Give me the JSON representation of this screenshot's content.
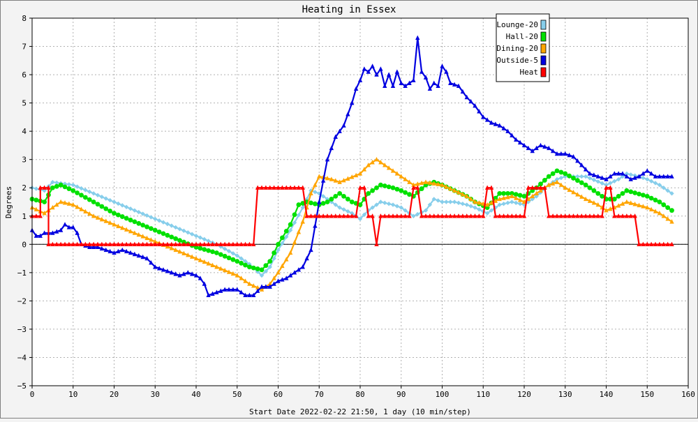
{
  "chart_data": {
    "type": "line",
    "title": "Heating in Essex",
    "xlabel": "Start Date 2022-02-22 21:50, 1 day (10 min/step)",
    "ylabel": "Degrees",
    "xlim": [
      0,
      160
    ],
    "ylim": [
      -5,
      8
    ],
    "xticks": [
      0,
      10,
      20,
      30,
      40,
      50,
      60,
      70,
      80,
      90,
      100,
      110,
      120,
      130,
      140,
      150,
      160
    ],
    "yticks": [
      -5,
      -4,
      -3,
      -2,
      -1,
      0,
      1,
      2,
      3,
      4,
      5,
      6,
      7,
      8
    ],
    "grid": true,
    "legend_position": "top-right",
    "series": [
      {
        "name": "Lounge-20",
        "color": "#87ceeb",
        "marker": "diamond",
        "points": [
          [
            0,
            2.0
          ],
          [
            3,
            1.9
          ],
          [
            5,
            2.2
          ],
          [
            10,
            2.1
          ],
          [
            15,
            1.8
          ],
          [
            20,
            1.5
          ],
          [
            25,
            1.2
          ],
          [
            30,
            0.9
          ],
          [
            35,
            0.6
          ],
          [
            40,
            0.3
          ],
          [
            45,
            0.0
          ],
          [
            50,
            -0.4
          ],
          [
            53,
            -0.7
          ],
          [
            56,
            -1.1
          ],
          [
            58,
            -0.8
          ],
          [
            60,
            -0.2
          ],
          [
            63,
            0.5
          ],
          [
            66,
            1.3
          ],
          [
            68,
            1.9
          ],
          [
            70,
            1.8
          ],
          [
            72,
            1.6
          ],
          [
            75,
            1.3
          ],
          [
            78,
            1.1
          ],
          [
            80,
            0.9
          ],
          [
            82,
            1.2
          ],
          [
            85,
            1.5
          ],
          [
            88,
            1.4
          ],
          [
            90,
            1.3
          ],
          [
            93,
            1.0
          ],
          [
            96,
            1.2
          ],
          [
            98,
            1.6
          ],
          [
            100,
            1.5
          ],
          [
            103,
            1.5
          ],
          [
            106,
            1.4
          ],
          [
            108,
            1.3
          ],
          [
            111,
            1.1
          ],
          [
            114,
            1.4
          ],
          [
            117,
            1.5
          ],
          [
            120,
            1.4
          ],
          [
            123,
            1.7
          ],
          [
            126,
            2.1
          ],
          [
            128,
            2.3
          ],
          [
            130,
            2.4
          ],
          [
            135,
            2.4
          ],
          [
            140,
            2.1
          ],
          [
            143,
            2.3
          ],
          [
            145,
            2.5
          ],
          [
            148,
            2.4
          ],
          [
            150,
            2.3
          ],
          [
            153,
            2.1
          ],
          [
            156,
            1.8
          ]
        ]
      },
      {
        "name": "Hall-20",
        "color": "#00e000",
        "marker": "circle",
        "points": [
          [
            0,
            1.6
          ],
          [
            3,
            1.5
          ],
          [
            5,
            2.0
          ],
          [
            7,
            2.1
          ],
          [
            10,
            1.9
          ],
          [
            15,
            1.5
          ],
          [
            20,
            1.1
          ],
          [
            25,
            0.8
          ],
          [
            30,
            0.5
          ],
          [
            35,
            0.2
          ],
          [
            40,
            -0.1
          ],
          [
            45,
            -0.3
          ],
          [
            50,
            -0.6
          ],
          [
            53,
            -0.8
          ],
          [
            56,
            -0.9
          ],
          [
            58,
            -0.6
          ],
          [
            60,
            0.0
          ],
          [
            63,
            0.7
          ],
          [
            65,
            1.4
          ],
          [
            67,
            1.5
          ],
          [
            70,
            1.4
          ],
          [
            72,
            1.5
          ],
          [
            75,
            1.8
          ],
          [
            78,
            1.5
          ],
          [
            80,
            1.4
          ],
          [
            82,
            1.8
          ],
          [
            85,
            2.1
          ],
          [
            88,
            2.0
          ],
          [
            90,
            1.9
          ],
          [
            93,
            1.7
          ],
          [
            96,
            2.1
          ],
          [
            98,
            2.2
          ],
          [
            100,
            2.1
          ],
          [
            103,
            1.9
          ],
          [
            106,
            1.7
          ],
          [
            108,
            1.5
          ],
          [
            111,
            1.3
          ],
          [
            114,
            1.8
          ],
          [
            117,
            1.8
          ],
          [
            120,
            1.7
          ],
          [
            123,
            2.0
          ],
          [
            126,
            2.4
          ],
          [
            128,
            2.6
          ],
          [
            130,
            2.5
          ],
          [
            135,
            2.1
          ],
          [
            138,
            1.8
          ],
          [
            140,
            1.6
          ],
          [
            142,
            1.6
          ],
          [
            145,
            1.9
          ],
          [
            150,
            1.7
          ],
          [
            153,
            1.5
          ],
          [
            156,
            1.2
          ]
        ]
      },
      {
        "name": "Dining-20",
        "color": "#ffa500",
        "marker": "triangle",
        "points": [
          [
            0,
            1.3
          ],
          [
            3,
            1.1
          ],
          [
            5,
            1.3
          ],
          [
            7,
            1.5
          ],
          [
            10,
            1.4
          ],
          [
            15,
            1.0
          ],
          [
            20,
            0.7
          ],
          [
            25,
            0.4
          ],
          [
            30,
            0.1
          ],
          [
            35,
            -0.2
          ],
          [
            40,
            -0.5
          ],
          [
            45,
            -0.8
          ],
          [
            50,
            -1.1
          ],
          [
            53,
            -1.4
          ],
          [
            56,
            -1.6
          ],
          [
            58,
            -1.4
          ],
          [
            60,
            -1.0
          ],
          [
            63,
            -0.3
          ],
          [
            66,
            0.8
          ],
          [
            68,
            1.8
          ],
          [
            70,
            2.4
          ],
          [
            73,
            2.3
          ],
          [
            75,
            2.2
          ],
          [
            80,
            2.5
          ],
          [
            82,
            2.8
          ],
          [
            84,
            3.0
          ],
          [
            86,
            2.8
          ],
          [
            90,
            2.4
          ],
          [
            93,
            2.1
          ],
          [
            96,
            2.2
          ],
          [
            100,
            2.1
          ],
          [
            103,
            1.9
          ],
          [
            106,
            1.7
          ],
          [
            108,
            1.5
          ],
          [
            111,
            1.4
          ],
          [
            114,
            1.6
          ],
          [
            117,
            1.7
          ],
          [
            120,
            1.5
          ],
          [
            123,
            1.8
          ],
          [
            126,
            2.1
          ],
          [
            128,
            2.2
          ],
          [
            130,
            2.0
          ],
          [
            135,
            1.6
          ],
          [
            138,
            1.4
          ],
          [
            140,
            1.2
          ],
          [
            142,
            1.3
          ],
          [
            145,
            1.5
          ],
          [
            150,
            1.3
          ],
          [
            153,
            1.1
          ],
          [
            156,
            0.8
          ]
        ]
      },
      {
        "name": "Outside-5",
        "color": "#0000e0",
        "marker": "triangle",
        "points": [
          [
            0,
            0.5
          ],
          [
            1,
            0.3
          ],
          [
            2,
            0.3
          ],
          [
            3,
            0.4
          ],
          [
            5,
            0.4
          ],
          [
            7,
            0.5
          ],
          [
            8,
            0.7
          ],
          [
            9,
            0.6
          ],
          [
            10,
            0.6
          ],
          [
            11,
            0.4
          ],
          [
            12,
            0.0
          ],
          [
            14,
            -0.1
          ],
          [
            16,
            -0.1
          ],
          [
            18,
            -0.2
          ],
          [
            20,
            -0.3
          ],
          [
            22,
            -0.2
          ],
          [
            24,
            -0.3
          ],
          [
            26,
            -0.4
          ],
          [
            28,
            -0.5
          ],
          [
            30,
            -0.8
          ],
          [
            32,
            -0.9
          ],
          [
            34,
            -1.0
          ],
          [
            36,
            -1.1
          ],
          [
            38,
            -1.0
          ],
          [
            40,
            -1.1
          ],
          [
            41,
            -1.2
          ],
          [
            42,
            -1.4
          ],
          [
            43,
            -1.8
          ],
          [
            45,
            -1.7
          ],
          [
            47,
            -1.6
          ],
          [
            49,
            -1.6
          ],
          [
            50,
            -1.6
          ],
          [
            52,
            -1.8
          ],
          [
            54,
            -1.8
          ],
          [
            56,
            -1.5
          ],
          [
            58,
            -1.5
          ],
          [
            60,
            -1.3
          ],
          [
            62,
            -1.2
          ],
          [
            64,
            -1.0
          ],
          [
            66,
            -0.8
          ],
          [
            68,
            -0.2
          ],
          [
            70,
            1.5
          ],
          [
            72,
            3.0
          ],
          [
            74,
            3.8
          ],
          [
            76,
            4.2
          ],
          [
            78,
            5.0
          ],
          [
            79,
            5.5
          ],
          [
            80,
            5.8
          ],
          [
            81,
            6.2
          ],
          [
            82,
            6.1
          ],
          [
            83,
            6.3
          ],
          [
            84,
            6.0
          ],
          [
            85,
            6.2
          ],
          [
            86,
            5.6
          ],
          [
            87,
            6.0
          ],
          [
            88,
            5.6
          ],
          [
            89,
            6.1
          ],
          [
            90,
            5.7
          ],
          [
            91,
            5.6
          ],
          [
            92,
            5.7
          ],
          [
            93,
            5.8
          ],
          [
            94,
            7.3
          ],
          [
            95,
            6.1
          ],
          [
            96,
            5.9
          ],
          [
            97,
            5.5
          ],
          [
            98,
            5.7
          ],
          [
            99,
            5.6
          ],
          [
            100,
            6.3
          ],
          [
            101,
            6.1
          ],
          [
            102,
            5.7
          ],
          [
            104,
            5.6
          ],
          [
            106,
            5.2
          ],
          [
            108,
            4.9
          ],
          [
            110,
            4.5
          ],
          [
            112,
            4.3
          ],
          [
            114,
            4.2
          ],
          [
            116,
            4.0
          ],
          [
            118,
            3.7
          ],
          [
            120,
            3.5
          ],
          [
            122,
            3.3
          ],
          [
            124,
            3.5
          ],
          [
            126,
            3.4
          ],
          [
            128,
            3.2
          ],
          [
            130,
            3.2
          ],
          [
            132,
            3.1
          ],
          [
            134,
            2.8
          ],
          [
            136,
            2.5
          ],
          [
            138,
            2.4
          ],
          [
            140,
            2.3
          ],
          [
            142,
            2.5
          ],
          [
            144,
            2.5
          ],
          [
            146,
            2.3
          ],
          [
            148,
            2.4
          ],
          [
            150,
            2.6
          ],
          [
            152,
            2.4
          ],
          [
            154,
            2.4
          ],
          [
            156,
            2.4
          ]
        ]
      },
      {
        "name": "Heat",
        "color": "#ff0000",
        "marker": "triangle",
        "points": [
          [
            0,
            1
          ],
          [
            2,
            1
          ],
          [
            2,
            2
          ],
          [
            4,
            2
          ],
          [
            4,
            0
          ],
          [
            54,
            0
          ],
          [
            55,
            2
          ],
          [
            66,
            2
          ],
          [
            67,
            1
          ],
          [
            79,
            1
          ],
          [
            80,
            2
          ],
          [
            81,
            2
          ],
          [
            82,
            1
          ],
          [
            83,
            1
          ],
          [
            84,
            0
          ],
          [
            85,
            1
          ],
          [
            92,
            1
          ],
          [
            93,
            2
          ],
          [
            94,
            2
          ],
          [
            95,
            1
          ],
          [
            110,
            1
          ],
          [
            111,
            2
          ],
          [
            112,
            2
          ],
          [
            113,
            1
          ],
          [
            120,
            1
          ],
          [
            121,
            2
          ],
          [
            125,
            2
          ],
          [
            126,
            1
          ],
          [
            139,
            1
          ],
          [
            140,
            2
          ],
          [
            141,
            2
          ],
          [
            142,
            1
          ],
          [
            147,
            1
          ],
          [
            148,
            0
          ],
          [
            156,
            0
          ]
        ]
      }
    ]
  }
}
